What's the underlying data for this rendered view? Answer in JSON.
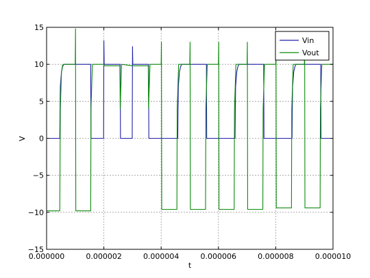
{
  "chart_data": {
    "type": "line",
    "title": "",
    "xlabel": "t",
    "ylabel": "V",
    "xlim": [
      0,
      1e-05
    ],
    "ylim": [
      -15,
      15
    ],
    "x_ticks": [
      0,
      2e-06,
      4e-06,
      6e-06,
      8e-06,
      1e-05
    ],
    "x_tick_labels": [
      "0.000000",
      "0.000002",
      "0.000004",
      "0.000006",
      "0.000008",
      "0.000010"
    ],
    "y_ticks": [
      -15,
      -10,
      -5,
      0,
      5,
      10,
      15
    ],
    "y_tick_labels": [
      "−15",
      "−10",
      "−5",
      "0",
      "5",
      "10",
      "15"
    ],
    "grid": true,
    "legend_position": "top-right",
    "series": [
      {
        "name": "Vin",
        "color": "#1f1fa6",
        "x": [
          0,
          4.6e-07,
          4.7e-07,
          4.8e-07,
          5.2e-07,
          5.6e-07,
          6e-07,
          6.4e-07,
          8e-07,
          1e-06,
          1.54e-06,
          1.55e-06,
          1.56e-06,
          1.6e-06,
          1.64e-06,
          1.68e-06,
          1.72e-06,
          1.9e-06,
          1.99e-06,
          2e-06,
          2.01e-06,
          2.02e-06,
          2.03e-06,
          2.3e-06,
          2.57e-06,
          2.58e-06,
          2.59e-06,
          2.63e-06,
          2.67e-06,
          2.71e-06,
          2.75e-06,
          2.9e-06,
          2.99e-06,
          3e-06,
          3.01e-06,
          3.02e-06,
          3.03e-06,
          3.3e-06,
          3.56e-06,
          3.57e-06,
          3.58e-06,
          3.62e-06,
          3.66e-06,
          3.7e-06,
          3.74e-06,
          4.3e-06,
          4.58e-06,
          4.59e-06,
          4.6e-06,
          4.64e-06,
          4.68e-06,
          4.72e-06,
          4.76e-06,
          5.3e-06,
          5.58e-06,
          5.59e-06,
          5.6e-06,
          5.64e-06,
          5.68e-06,
          5.72e-06,
          5.76e-06,
          6.3e-06,
          6.58e-06,
          6.59e-06,
          6.6e-06,
          6.64e-06,
          6.68e-06,
          6.72e-06,
          6.76e-06,
          7.3e-06,
          7.58e-06,
          7.59e-06,
          7.6e-06,
          7.64e-06,
          7.68e-06,
          7.72e-06,
          7.76e-06,
          8.3e-06,
          8.57e-06,
          8.58e-06,
          8.59e-06,
          8.63e-06,
          8.67e-06,
          8.71e-06,
          8.75e-06,
          9.3e-06,
          9.57e-06,
          9.58e-06,
          9.59e-06,
          9.63e-06,
          9.67e-06,
          9.71e-06,
          9.75e-06,
          1e-05
        ],
        "y": [
          0,
          0,
          4,
          7,
          9,
          9.7,
          10,
          10,
          10,
          10,
          10,
          0,
          0,
          0,
          0,
          0,
          0,
          0,
          0,
          13.2,
          10,
          10,
          10,
          10,
          10,
          0,
          0,
          0,
          0,
          0,
          0,
          0,
          0,
          12.4,
          10,
          10,
          10,
          10,
          10,
          0,
          0,
          0,
          0,
          0,
          0,
          0,
          0,
          4,
          7,
          9,
          9.7,
          10,
          10,
          10,
          10,
          0,
          0,
          0,
          0,
          0,
          0,
          0,
          0,
          4,
          7,
          9,
          9.7,
          10,
          10,
          10,
          10,
          0,
          0,
          0,
          0,
          0,
          0,
          0,
          0,
          4,
          7,
          9,
          9.7,
          10,
          10,
          10,
          10,
          0,
          0,
          0,
          0,
          0,
          0,
          0
        ]
      },
      {
        "name": "Vout",
        "color": "#0a8a0a",
        "x": [
          0,
          4.6e-07,
          4.8e-07,
          5.2e-07,
          5.6e-07,
          6e-07,
          1e-06,
          1.01e-06,
          1.02e-06,
          1.54e-06,
          1.55e-06,
          1.6e-06,
          2e-06,
          2.01e-06,
          2.3e-06,
          2.56e-06,
          2.57e-06,
          2.62e-06,
          3e-06,
          3.01e-06,
          3.55e-06,
          3.56e-06,
          3.61e-06,
          4e-06,
          4.01e-06,
          4.02e-06,
          4.55e-06,
          4.56e-06,
          4.61e-06,
          5e-06,
          5.01e-06,
          5.02e-06,
          5.55e-06,
          5.56e-06,
          5.61e-06,
          6e-06,
          6.01e-06,
          6.02e-06,
          6.55e-06,
          6.56e-06,
          6.61e-06,
          7e-06,
          7.01e-06,
          7.02e-06,
          7.55e-06,
          7.56e-06,
          7.61e-06,
          8e-06,
          8.01e-06,
          8.02e-06,
          8.55e-06,
          8.56e-06,
          8.61e-06,
          9e-06,
          9.01e-06,
          9.02e-06,
          9.55e-06,
          9.56e-06,
          9.61e-06,
          1e-05
        ],
        "y": [
          -9.8,
          -9.8,
          4,
          9,
          9.9,
          10,
          10,
          14.8,
          -9.8,
          -9.8,
          4,
          10,
          10,
          9.8,
          9.8,
          9.8,
          4,
          10,
          9.8,
          9.8,
          9.8,
          4,
          10,
          10,
          13.0,
          -9.6,
          -9.6,
          4,
          10,
          10,
          13.0,
          -9.6,
          -9.6,
          4,
          10,
          10,
          13.0,
          -9.6,
          -9.6,
          4,
          10,
          10,
          13.0,
          -9.6,
          -9.6,
          4,
          10,
          10,
          13.0,
          -9.4,
          -9.4,
          4,
          10,
          10,
          13.0,
          -9.4,
          -9.4,
          4,
          10,
          10
        ]
      }
    ]
  }
}
